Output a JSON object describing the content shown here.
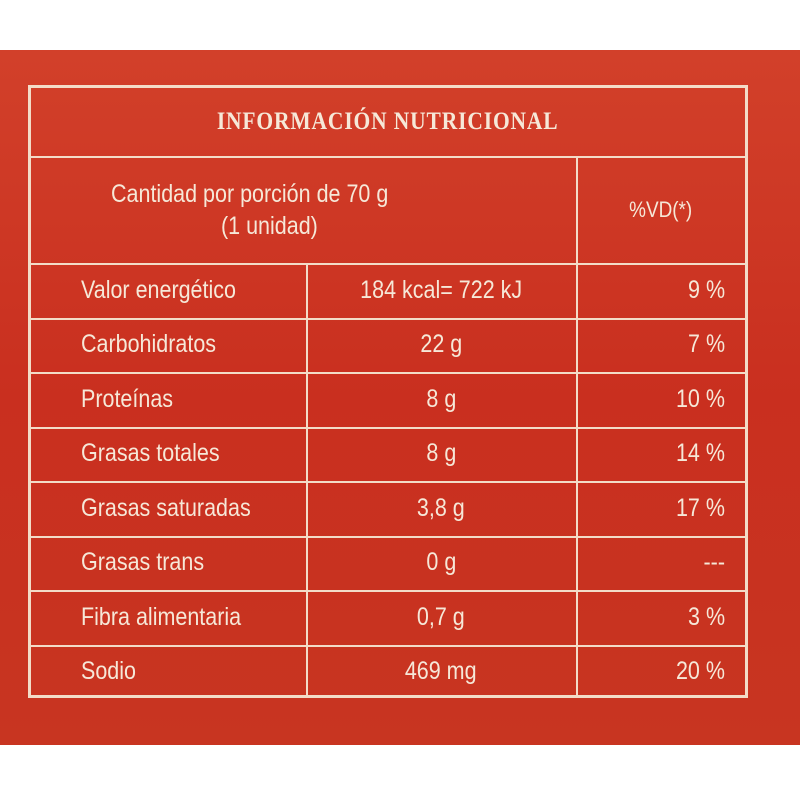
{
  "header": {
    "title": "INFORMACIÓN NUTRICIONAL"
  },
  "table": {
    "head": {
      "lines": [
        "Cantidad por porción de 70 g",
        "(1 unidad)"
      ],
      "dv": "%VD(*)"
    },
    "rows": [
      [
        "Valor energético",
        "184 kcal= 722 kJ",
        "9 %"
      ],
      [
        "Carbohidratos",
        "22 g",
        "7 %"
      ],
      [
        "Proteínas",
        "8 g",
        "10 %"
      ],
      [
        "Grasas totales",
        "8 g",
        "14 %"
      ],
      [
        "Grasas saturadas",
        "3,8 g",
        "17 %"
      ],
      [
        "Grasas trans",
        "0 g",
        "---"
      ],
      [
        "Fibra alimentaria",
        "0,7 g",
        "3 %"
      ],
      [
        "Sodio",
        "469 mg",
        "20 %"
      ]
    ]
  }
}
